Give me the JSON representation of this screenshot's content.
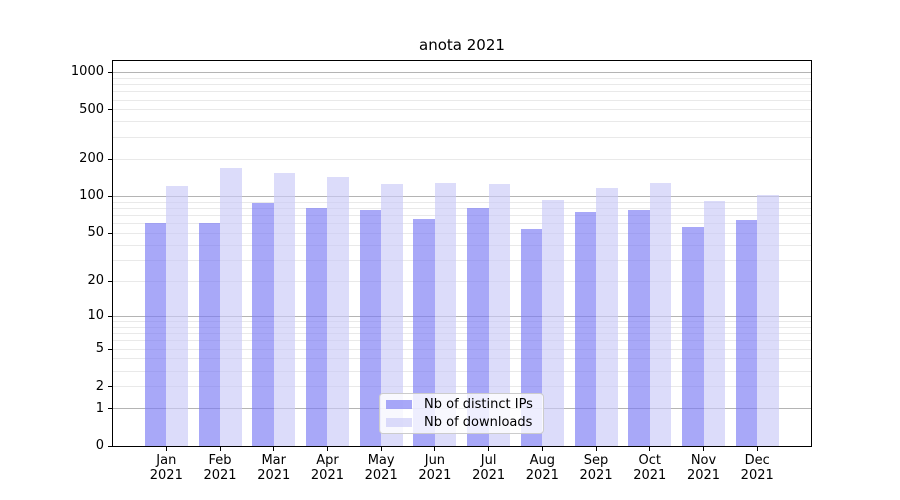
{
  "chart_data": {
    "type": "bar",
    "title": "anota 2021",
    "x_categories": [
      "Jan",
      "Feb",
      "Mar",
      "Apr",
      "May",
      "Jun",
      "Jul",
      "Aug",
      "Sep",
      "Oct",
      "Nov",
      "Dec"
    ],
    "x_year_suffix": "2021",
    "series": [
      {
        "name": "Nb of distinct IPs",
        "fill": "rgba(122,122,244,0.65)",
        "solid_color": "#a9a9f7",
        "values": [
          61,
          61,
          88,
          81,
          77,
          65,
          81,
          54,
          75,
          78,
          56,
          64
        ]
      },
      {
        "name": "Nb of downloads",
        "fill": "rgba(201,201,248,0.65)",
        "solid_color": "#dcdcfa",
        "values": [
          122,
          170,
          155,
          144,
          126,
          128,
          127,
          94,
          117,
          129,
          92,
          103
        ]
      }
    ],
    "yscale": "log1p",
    "ylim": [
      0,
      1240
    ],
    "yticks": [
      1000,
      500,
      200,
      100,
      50,
      20,
      10,
      5,
      2,
      1,
      0
    ],
    "grid": {
      "major_at": [
        1,
        10,
        100,
        1000
      ],
      "major_color": "#b4b4b4",
      "minor_color": "#e9e9e9"
    },
    "legend_position": "lower center",
    "axis_color": "#000000"
  }
}
